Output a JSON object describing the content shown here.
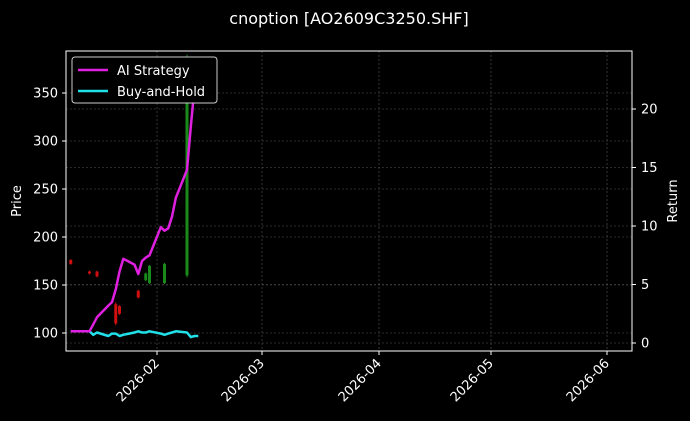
{
  "title": "cnoption [AO2609C3250.SHF]",
  "chart_data": {
    "type": "line",
    "title": "cnoption [AO2609C3250.SHF]",
    "xlabel": "",
    "ylabel": "Price",
    "ylabel_right": "Return",
    "x_ticks": [
      "2026-02",
      "2026-03",
      "2026-04",
      "2026-05",
      "2026-06"
    ],
    "y_ticks_left": [
      100,
      150,
      200,
      250,
      300,
      350
    ],
    "y_ticks_right": [
      0,
      5,
      10,
      15,
      20
    ],
    "ylim_left": [
      81,
      393
    ],
    "ylim_right": [
      -0.7,
      24.2
    ],
    "grid": true,
    "legend_position": "upper left",
    "legend": [
      "AI Strategy",
      "Buy-and-Hold"
    ],
    "series": [
      {
        "name": "AI Strategy",
        "axis": "right",
        "color": "#e020e0",
        "x": [
          "2026-01-09",
          "2026-01-12",
          "2026-01-13",
          "2026-01-14",
          "2026-01-15",
          "2026-01-16",
          "2026-01-19",
          "2026-01-20",
          "2026-01-21",
          "2026-01-22",
          "2026-01-23",
          "2026-01-26",
          "2026-01-27",
          "2026-01-28",
          "2026-01-29",
          "2026-01-30",
          "2026-02-02",
          "2026-02-03",
          "2026-02-04",
          "2026-02-05",
          "2026-02-06",
          "2026-02-09",
          "2026-02-10",
          "2026-02-11",
          "2026-02-12"
        ],
        "values": [
          1.0,
          1.0,
          1.0,
          1.0,
          1.6,
          2.2,
          3.2,
          3.5,
          4.6,
          6.1,
          7.2,
          6.7,
          5.9,
          7.0,
          7.3,
          7.5,
          9.9,
          9.6,
          9.8,
          10.8,
          12.4,
          14.8,
          18.5,
          21.8,
          24.0
        ]
      },
      {
        "name": "Buy-and-Hold",
        "axis": "right",
        "color": "#20e0e8",
        "x": [
          "2026-01-09",
          "2026-01-12",
          "2026-01-13",
          "2026-01-14",
          "2026-01-15",
          "2026-01-16",
          "2026-01-19",
          "2026-01-20",
          "2026-01-21",
          "2026-01-22",
          "2026-01-23",
          "2026-01-26",
          "2026-01-27",
          "2026-01-28",
          "2026-01-29",
          "2026-01-30",
          "2026-02-02",
          "2026-02-03",
          "2026-02-04",
          "2026-02-05",
          "2026-02-06",
          "2026-02-09",
          "2026-02-10",
          "2026-02-11",
          "2026-02-12"
        ],
        "values": [
          1.0,
          1.0,
          1.0,
          1.0,
          0.7,
          0.9,
          0.6,
          0.8,
          0.8,
          0.6,
          0.7,
          0.9,
          1.0,
          0.9,
          0.9,
          1.0,
          0.8,
          0.7,
          0.8,
          0.9,
          1.0,
          0.9,
          0.5,
          0.6,
          0.6
        ]
      }
    ],
    "candles": {
      "axis": "left",
      "up_color": "#1a8a1a",
      "down_color": "#d01010",
      "items": [
        {
          "x": "2026-01-09",
          "open": 176,
          "close": 172,
          "high": 177,
          "low": 171
        },
        {
          "x": "2026-01-14",
          "open": 164,
          "close": 162,
          "high": 165,
          "low": 161
        },
        {
          "x": "2026-01-16",
          "open": 164,
          "close": 159,
          "high": 165,
          "low": 158
        },
        {
          "x": "2026-01-21",
          "open": 130,
          "close": 110,
          "high": 132,
          "low": 108
        },
        {
          "x": "2026-01-22",
          "open": 128,
          "close": 120,
          "high": 129,
          "low": 119
        },
        {
          "x": "2026-01-27",
          "open": 144,
          "close": 137,
          "high": 145,
          "low": 136
        },
        {
          "x": "2026-01-29",
          "open": 155,
          "close": 162,
          "high": 163,
          "low": 154
        },
        {
          "x": "2026-01-30",
          "open": 152,
          "close": 170,
          "high": 171,
          "low": 151
        },
        {
          "x": "2026-02-03",
          "open": 152,
          "close": 172,
          "high": 173,
          "low": 151
        },
        {
          "x": "2026-02-09",
          "open": 160,
          "close": 385,
          "high": 390,
          "low": 158
        }
      ]
    }
  }
}
